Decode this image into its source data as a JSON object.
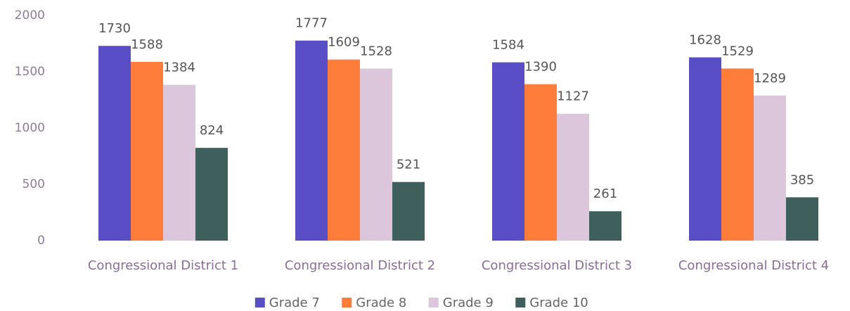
{
  "chart_data": {
    "type": "bar",
    "categories": [
      "Congressional District 1",
      "Congressional District 2",
      "Congressional District 3",
      "Congressional District 4"
    ],
    "series": [
      {
        "name": "Grade 7",
        "color": "#5a4ec6",
        "values": [
          1730,
          1777,
          1584,
          1628
        ]
      },
      {
        "name": "Grade 8",
        "color": "#ff7d3b",
        "values": [
          1588,
          1609,
          1390,
          1529
        ]
      },
      {
        "name": "Grade 9",
        "color": "#dcc6dc",
        "values": [
          1384,
          1528,
          1127,
          1289
        ]
      },
      {
        "name": "Grade 10",
        "color": "#3f5f5c",
        "values": [
          824,
          521,
          261,
          385
        ]
      }
    ],
    "ylim": [
      0,
      2000
    ],
    "yticks": [
      0,
      500,
      1000,
      1500,
      2000
    ],
    "legend": "bottom"
  }
}
